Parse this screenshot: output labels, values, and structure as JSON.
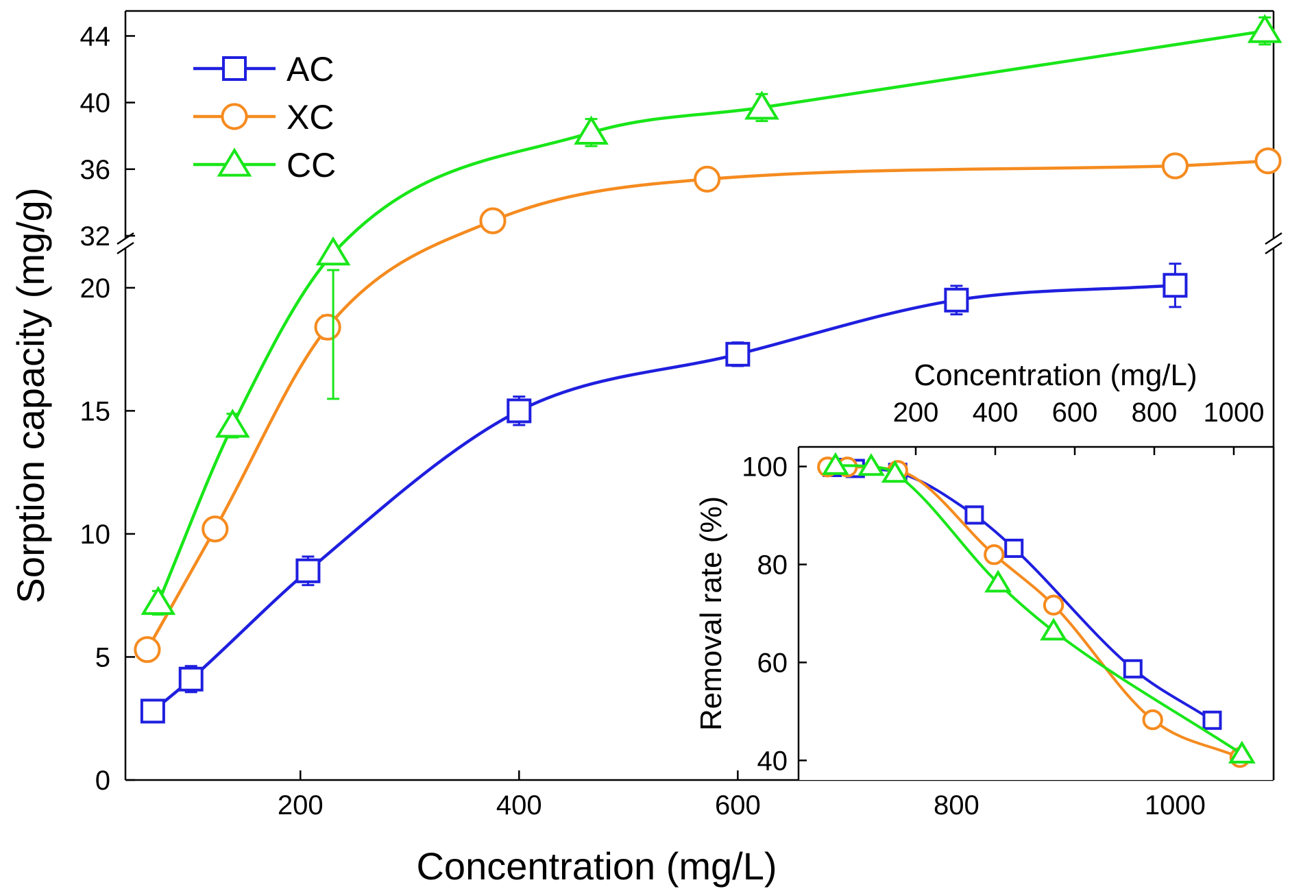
{
  "chart_data": [
    {
      "type": "line",
      "xlabel": "Concentration (mg/L)",
      "ylabel": "Sorption capacity (mg/g)",
      "xlim": [
        40,
        1090
      ],
      "x_ticks": [
        200,
        400,
        600,
        800,
        1000
      ],
      "y_axis_break": true,
      "ylim_lower": [
        0,
        21.5
      ],
      "ylim_upper": [
        32,
        45.5
      ],
      "y_ticks_lower": [
        0,
        5,
        10,
        15,
        20
      ],
      "y_ticks_upper": [
        32,
        36,
        40,
        44
      ],
      "legend": "top-left",
      "grid": false,
      "series": [
        {
          "name": "AC",
          "color": "#1f1fdf",
          "marker": "square",
          "x": [
            65,
            100,
            207,
            400,
            600,
            800,
            1000
          ],
          "y": [
            2.8,
            4.1,
            8.5,
            15.0,
            17.3,
            19.5,
            20.1
          ],
          "err": [
            0.15,
            0.25,
            0.3,
            0.3,
            0.2,
            0.3,
            0.6
          ]
        },
        {
          "name": "XC",
          "color": "#f58b1f",
          "marker": "circle",
          "x": [
            60,
            122,
            225,
            376,
            572,
            1000,
            1085
          ],
          "y": [
            5.3,
            10.2,
            18.4,
            32.9,
            35.4,
            36.2,
            36.5
          ],
          "err": [
            0.1,
            0.1,
            0.2,
            0.2,
            0.2,
            0.1,
            0.1
          ]
        },
        {
          "name": "CC",
          "color": "#19e619",
          "marker": "triangle",
          "x": [
            70,
            138,
            230,
            466,
            622,
            1082
          ],
          "y": [
            7.2,
            14.4,
            21.4,
            38.2,
            39.7,
            44.3
          ],
          "err": [
            0.2,
            0.2,
            0.4,
            0.4,
            0.4,
            0.4
          ]
        }
      ]
    },
    {
      "type": "line",
      "ylabel": "Removal rate (%)",
      "xlabel_top": "Concentration (mg/L)",
      "ylim": [
        36,
        104
      ],
      "y_ticks": [
        40,
        60,
        80,
        100
      ],
      "x_ticks": [
        200,
        400,
        600,
        800,
        1000
      ],
      "series": [
        {
          "name": "AC",
          "color": "#1f1fdf",
          "marker": "square",
          "x": [
            42,
            100,
            207,
            400,
            500,
            800,
            1000
          ],
          "y": [
            99.8,
            99.6,
            98.8,
            90.1,
            83.3,
            58.7,
            48.2
          ],
          "err": [
            0.3,
            0.3,
            0.4,
            0.4,
            0.4,
            0.4,
            0.4
          ]
        },
        {
          "name": "XC",
          "color": "#f58b1f",
          "marker": "circle",
          "x": [
            30,
            80,
            207,
            450,
            600,
            850,
            1070
          ],
          "y": [
            99.9,
            99.9,
            99.2,
            82.0,
            71.7,
            48.3,
            40.6
          ],
          "err": [
            0.3,
            0.3,
            0.3,
            0.4,
            0.4,
            0.4,
            0.4
          ]
        },
        {
          "name": "CC",
          "color": "#19e619",
          "marker": "triangle",
          "x": [
            50,
            140,
            200,
            460,
            600,
            1075
          ],
          "y": [
            100.2,
            100.0,
            98.6,
            76.2,
            66.4,
            41.3
          ],
          "err": [
            0.3,
            0.3,
            0.4,
            0.6,
            0.6,
            0.4
          ]
        }
      ]
    }
  ]
}
